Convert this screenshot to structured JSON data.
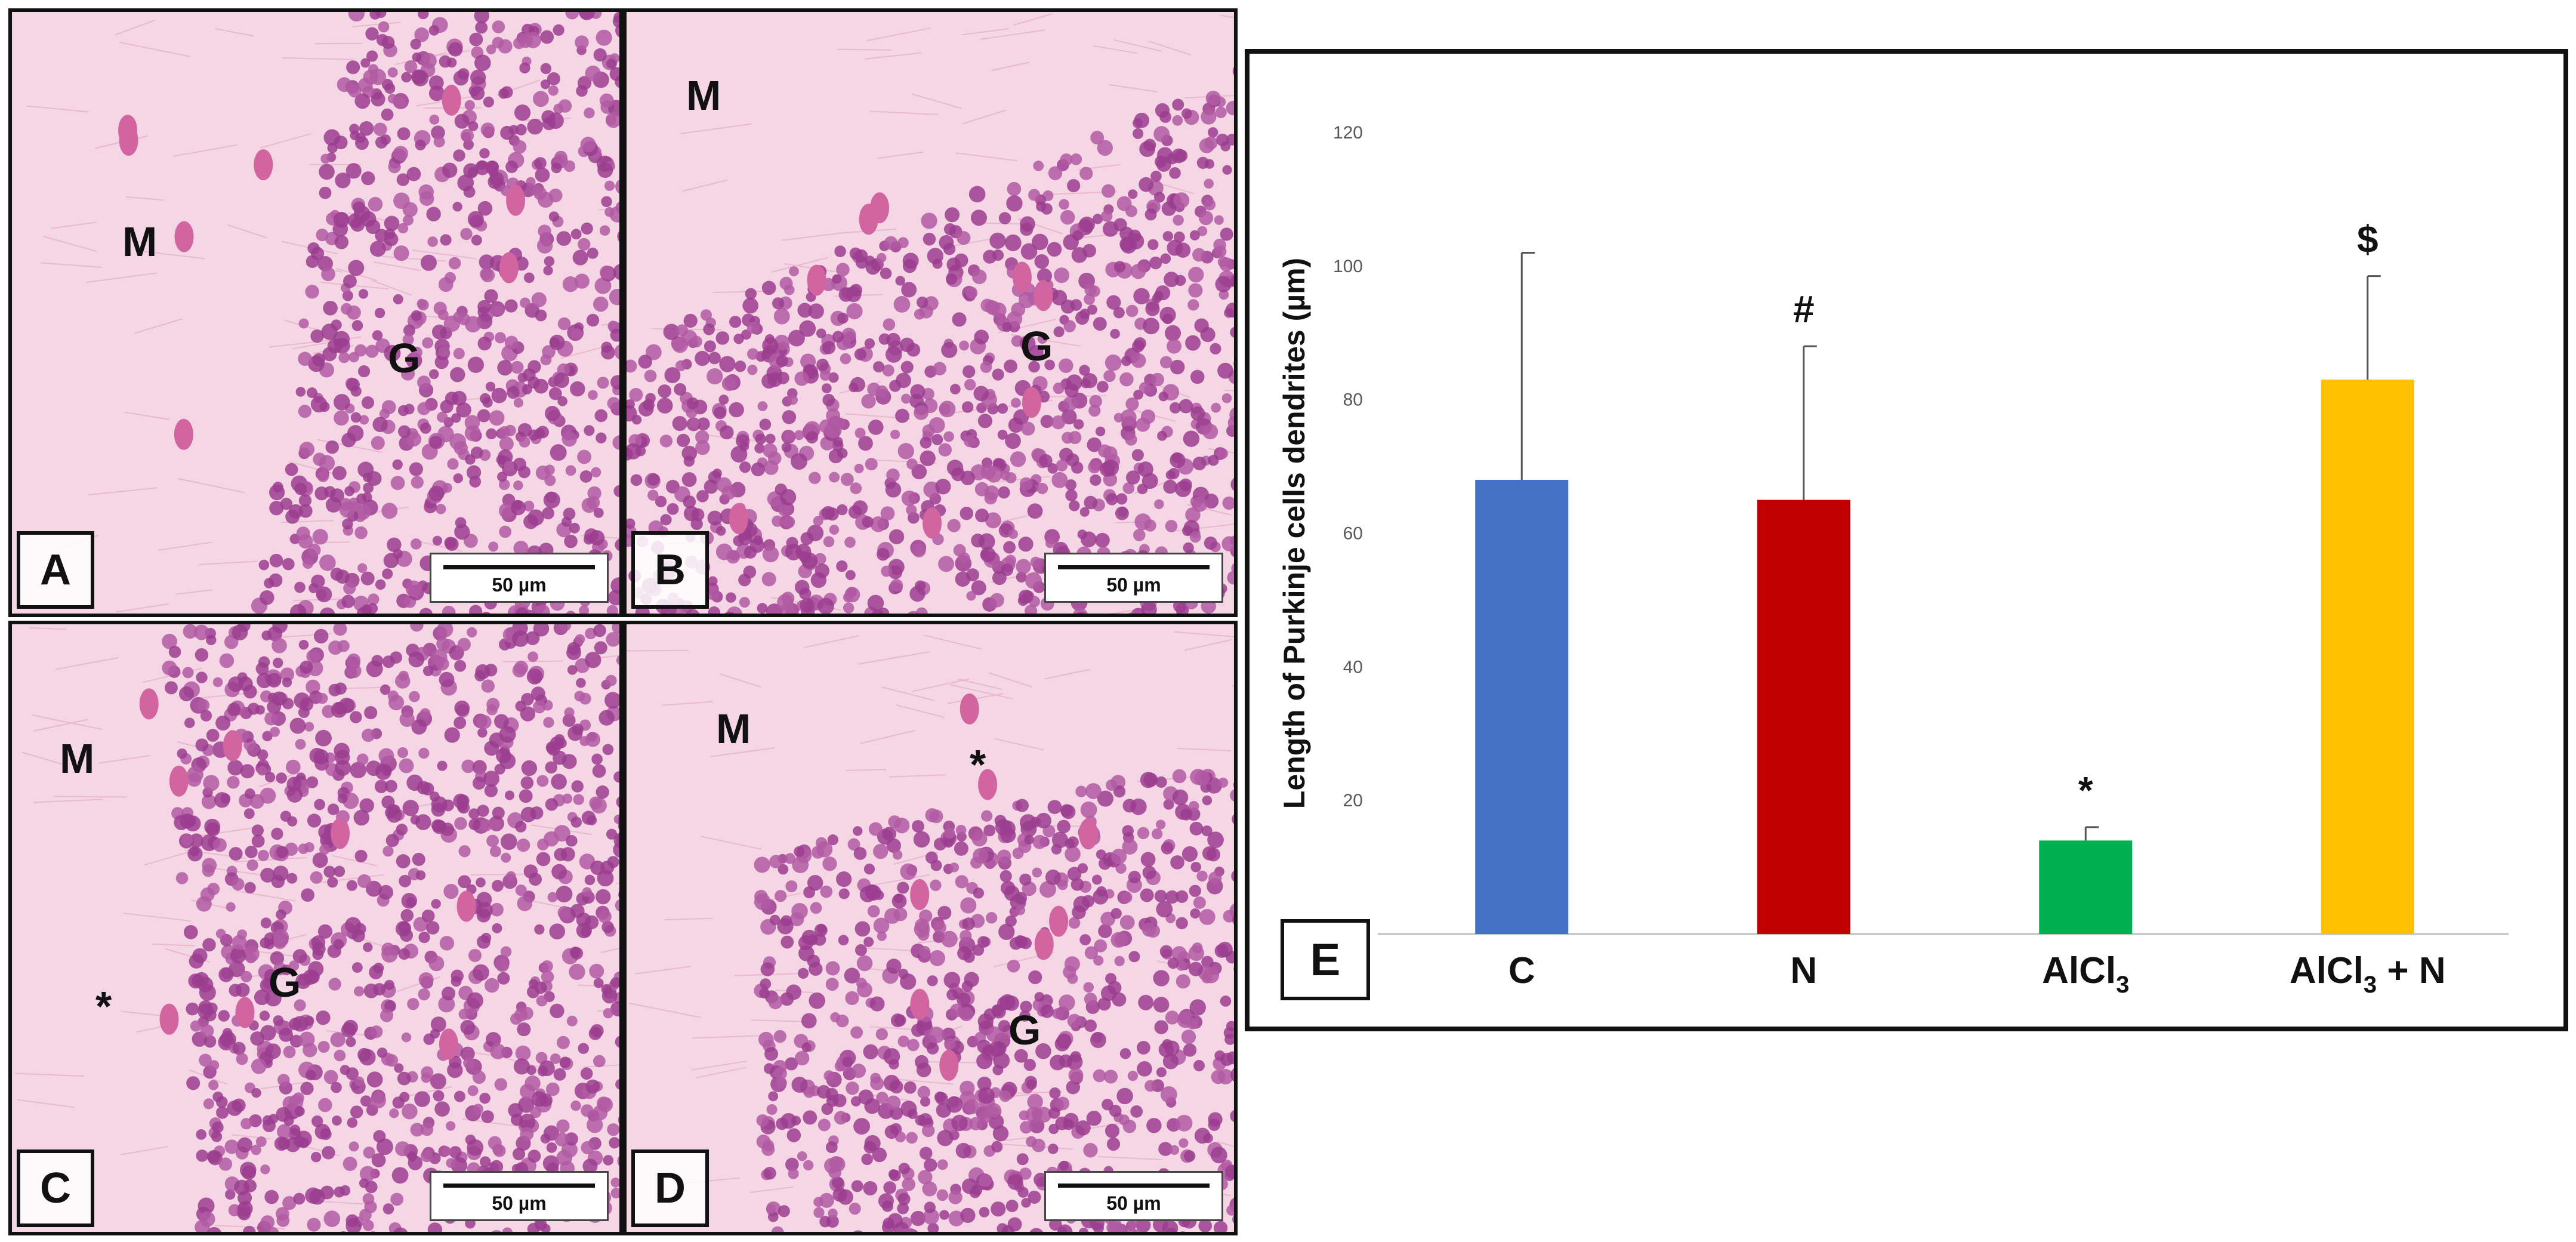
{
  "panels": [
    {
      "id": "A",
      "label": "A",
      "scale": "50 µm",
      "regions": [
        {
          "text": "M"
        },
        {
          "text": "G"
        }
      ]
    },
    {
      "id": "B",
      "label": "B",
      "scale": "50 µm",
      "regions": [
        {
          "text": "M"
        },
        {
          "text": "G"
        }
      ]
    },
    {
      "id": "C",
      "label": "C",
      "scale": "50 µm",
      "regions": [
        {
          "text": "M"
        },
        {
          "text": "G"
        },
        {
          "text": "*"
        }
      ]
    },
    {
      "id": "D",
      "label": "D",
      "scale": "50 µm",
      "regions": [
        {
          "text": "M"
        },
        {
          "text": "G"
        },
        {
          "text": "*"
        }
      ]
    }
  ],
  "chart_label": "E",
  "chart_data": {
    "type": "bar",
    "title": "",
    "xlabel": "",
    "ylabel": "Length of Purkinje cells dendrites (µm)",
    "ylim": [
      0,
      120
    ],
    "yticks": [
      0,
      20,
      40,
      60,
      80,
      100,
      120
    ],
    "categories": [
      "C",
      "N",
      "AlCl3",
      "AlCl3 + N"
    ],
    "values": [
      68,
      65,
      14,
      83
    ],
    "errors": [
      34,
      23,
      2,
      15.5
    ],
    "colors": [
      "#4472c4",
      "#c00000",
      "#00b050",
      "#ffc000"
    ],
    "annotations": [
      "",
      "#",
      "*",
      "$"
    ],
    "grid": false
  }
}
